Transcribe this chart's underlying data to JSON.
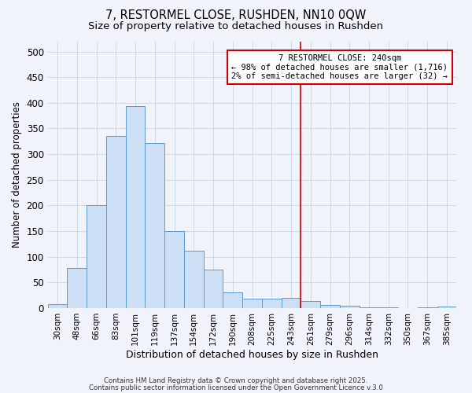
{
  "title": "7, RESTORMEL CLOSE, RUSHDEN, NN10 0QW",
  "subtitle": "Size of property relative to detached houses in Rushden",
  "xlabel": "Distribution of detached houses by size in Rushden",
  "ylabel": "Number of detached properties",
  "bar_labels": [
    "30sqm",
    "48sqm",
    "66sqm",
    "83sqm",
    "101sqm",
    "119sqm",
    "137sqm",
    "154sqm",
    "172sqm",
    "190sqm",
    "208sqm",
    "225sqm",
    "243sqm",
    "261sqm",
    "279sqm",
    "296sqm",
    "314sqm",
    "332sqm",
    "350sqm",
    "367sqm",
    "385sqm"
  ],
  "bar_heights": [
    8,
    78,
    200,
    335,
    393,
    322,
    150,
    111,
    75,
    30,
    18,
    18,
    20,
    13,
    6,
    5,
    2,
    2,
    0,
    2,
    3
  ],
  "bar_color": "#ccdff5",
  "bar_edge_color": "#5b9bd5",
  "annotation_line_x_label": "243sqm",
  "annotation_text_line1": "7 RESTORMEL CLOSE: 240sqm",
  "annotation_text_line2": "← 98% of detached houses are smaller (1,716)",
  "annotation_text_line3": "2% of semi-detached houses are larger (32) →",
  "annotation_box_color": "#ffffff",
  "annotation_box_edge_color": "#cc0000",
  "vline_color": "#cc0000",
  "background_color": "#f0f4fa",
  "grid_color": "#d0d8e8",
  "footer_line1": "Contains HM Land Registry data © Crown copyright and database right 2025.",
  "footer_line2": "Contains public sector information licensed under the Open Government Licence v.3.0",
  "ylim": [
    0,
    520
  ],
  "yticks": [
    0,
    50,
    100,
    150,
    200,
    250,
    300,
    350,
    400,
    450,
    500
  ]
}
